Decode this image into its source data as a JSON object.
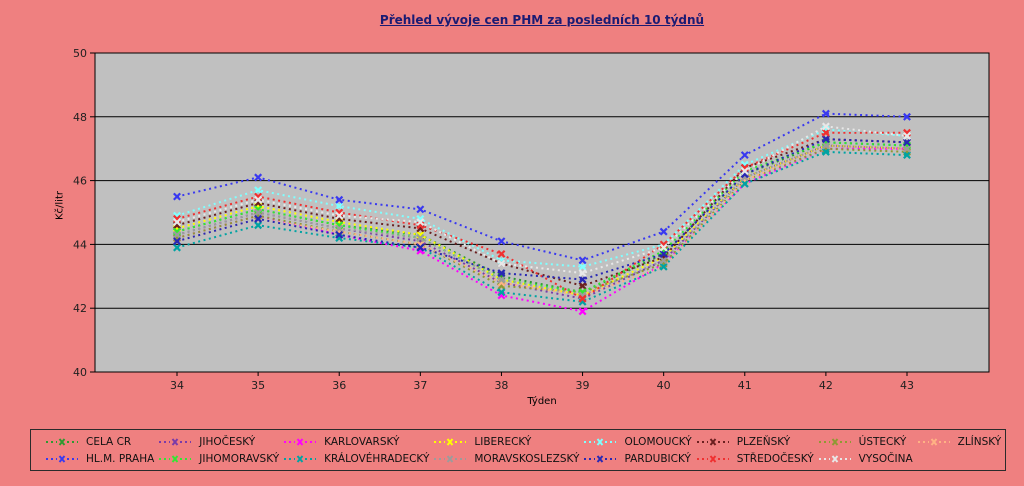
{
  "title": "Přehled vývoje cen PHM za posledních 10 týdnů",
  "colors": {
    "background": "#EF8080",
    "plot_bg": "#C0C0C0",
    "grid": "#000000",
    "title_color": "#1B1B73",
    "text": "#1F1F1F",
    "legend_border": "#2B2B2B"
  },
  "chart_data": {
    "type": "line",
    "title": "Přehled vývoje cen PHM za posledních 10 týdnů",
    "xlabel": "Týden",
    "ylabel": "Kč/litr",
    "x": [
      34,
      35,
      36,
      37,
      38,
      39,
      40,
      41,
      42,
      43
    ],
    "ylim": [
      40,
      50
    ],
    "ytick_step": 2,
    "grid": true,
    "legend_position": "bottom",
    "line_style": "dotted",
    "marker": "x",
    "series": [
      {
        "name": "CELA CR",
        "color": "#2E9930",
        "values": [
          44.4,
          45.1,
          44.6,
          44.3,
          43.0,
          42.5,
          43.7,
          46.2,
          47.2,
          47.1
        ]
      },
      {
        "name": "JIHOČESKÝ",
        "color": "#7A3BA8",
        "values": [
          44.3,
          45.0,
          44.5,
          44.1,
          42.8,
          42.3,
          43.5,
          46.1,
          47.1,
          47.0
        ]
      },
      {
        "name": "KARLOVARSKÝ",
        "color": "#FF00FF",
        "values": [
          44.2,
          44.9,
          44.3,
          43.8,
          42.4,
          41.9,
          43.4,
          45.9,
          47.0,
          47.0
        ]
      },
      {
        "name": "LIBERECKÝ",
        "color": "#FFFF00",
        "values": [
          44.5,
          45.2,
          44.7,
          44.3,
          42.9,
          42.4,
          43.6,
          46.1,
          47.1,
          47.0
        ]
      },
      {
        "name": "OLOMOUCKÝ",
        "color": "#7FFFFF",
        "values": [
          44.9,
          45.7,
          45.2,
          44.8,
          43.5,
          43.3,
          44.0,
          46.5,
          47.6,
          47.4
        ]
      },
      {
        "name": "PLZEŇSKÝ",
        "color": "#6B2020",
        "values": [
          44.6,
          45.3,
          44.8,
          44.5,
          43.4,
          42.7,
          43.6,
          46.4,
          47.3,
          47.2
        ]
      },
      {
        "name": "ÚSTECKÝ",
        "color": "#8F9933",
        "values": [
          44.2,
          44.9,
          44.4,
          44.0,
          42.7,
          42.5,
          43.4,
          46.0,
          47.0,
          46.9
        ]
      },
      {
        "name": "ZLÍNSKÝ",
        "color": "#FFB284",
        "values": [
          44.1,
          44.8,
          44.4,
          44.0,
          42.8,
          42.4,
          43.3,
          46.0,
          47.1,
          47.0
        ]
      },
      {
        "name": "HL.M. PRAHA",
        "color": "#3939F0",
        "values": [
          45.5,
          46.1,
          45.4,
          45.1,
          44.1,
          43.5,
          44.4,
          46.8,
          48.1,
          48.0
        ]
      },
      {
        "name": "JIHOMORAVSKÝ",
        "color": "#33E633",
        "values": [
          44.4,
          45.1,
          44.6,
          44.2,
          42.9,
          42.5,
          43.8,
          46.3,
          47.2,
          47.1
        ]
      },
      {
        "name": "KRÁLOVÉHRADECKÝ",
        "color": "#00A3A3",
        "values": [
          43.9,
          44.6,
          44.2,
          43.9,
          42.5,
          42.2,
          43.3,
          45.9,
          46.9,
          46.8
        ]
      },
      {
        "name": "MORAVSKOSLEZSKÝ",
        "color": "#9C9C9C",
        "values": [
          44.3,
          45.0,
          44.5,
          44.2,
          42.9,
          42.4,
          43.5,
          46.1,
          47.1,
          47.0
        ]
      },
      {
        "name": "PARDUBICKÝ",
        "color": "#2828B4",
        "values": [
          44.1,
          44.8,
          44.3,
          43.9,
          43.1,
          42.9,
          43.7,
          46.2,
          47.3,
          47.2
        ]
      },
      {
        "name": "STŘEDOČESKÝ",
        "color": "#F03030",
        "values": [
          44.8,
          45.5,
          45.0,
          44.6,
          43.7,
          42.3,
          44.0,
          46.4,
          47.5,
          47.5
        ]
      },
      {
        "name": "VYSOČINA",
        "color": "#E8E8E8",
        "values": [
          44.7,
          45.4,
          44.9,
          44.7,
          43.4,
          43.1,
          43.9,
          46.3,
          47.7,
          47.4
        ]
      }
    ]
  }
}
